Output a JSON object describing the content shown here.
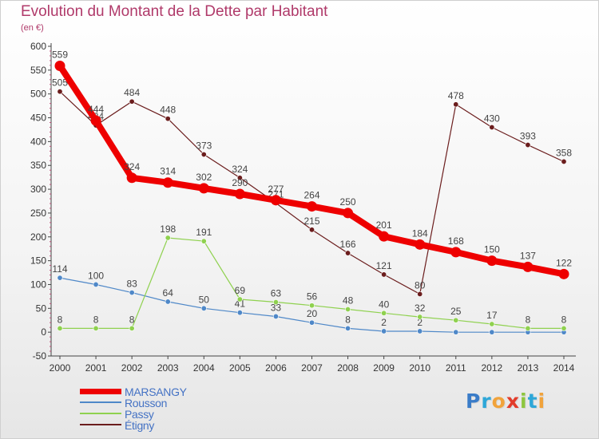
{
  "title": "Evolution du Montant de la Dette par Habitant",
  "unit_label": "(en €)",
  "logo": {
    "letters": [
      "P",
      "r",
      "o",
      "x",
      "i",
      "t",
      "i"
    ],
    "colors": [
      "#3a7cc8",
      "#2ea7d8",
      "#f1a33b",
      "#e23c2b",
      "#8ec63f",
      "#2ea7d8",
      "#f1a33b"
    ]
  },
  "chart_data": {
    "type": "line",
    "x": [
      "2000",
      "2001",
      "2002",
      "2003",
      "2004",
      "2005",
      "2006",
      "2007",
      "2008",
      "2009",
      "2010",
      "2011",
      "2012",
      "2013",
      "2014"
    ],
    "ylim": [
      -50,
      600
    ],
    "yticks": [
      -50,
      0,
      50,
      100,
      150,
      200,
      250,
      300,
      350,
      400,
      450,
      500,
      550,
      600
    ],
    "grid": false,
    "legend_position": "bottom-left",
    "series": [
      {
        "name": "MARSANGY",
        "color": "#ee0000",
        "values": [
          559,
          444,
          324,
          314,
          302,
          290,
          277,
          264,
          250,
          201,
          184,
          168,
          150,
          137,
          122
        ]
      },
      {
        "name": "Rousson",
        "color": "#4f88c8",
        "values": [
          114,
          100,
          83,
          64,
          50,
          41,
          33,
          20,
          8,
          2,
          2,
          0,
          0,
          0,
          0
        ],
        "labels": [
          "114",
          "100",
          "83",
          "64",
          "50",
          "41",
          "33",
          "20",
          "8",
          "2",
          "2",
          "",
          "",
          "",
          ""
        ]
      },
      {
        "name": "Passy",
        "color": "#8fd14f",
        "values": [
          8,
          8,
          8,
          198,
          191,
          69,
          63,
          56,
          48,
          40,
          32,
          25,
          17,
          8,
          8
        ]
      },
      {
        "name": "Étigny",
        "color": "#6b1d1d",
        "values": [
          505,
          434,
          484,
          448,
          373,
          324,
          271,
          215,
          166,
          121,
          80,
          478,
          430,
          393,
          358
        ]
      }
    ]
  }
}
